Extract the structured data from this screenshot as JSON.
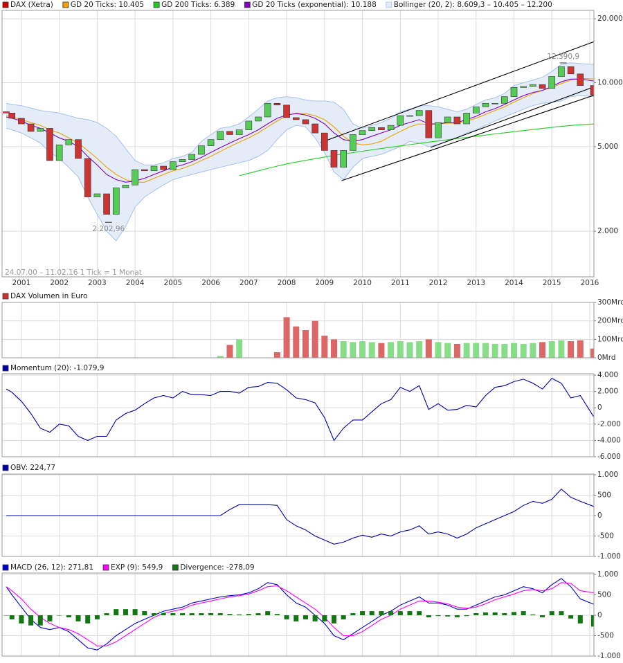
{
  "chart_data": [
    {
      "type": "candlestick",
      "name": "DAX (Xetra)",
      "legend_color": "#cc0000",
      "log": true,
      "footnote": "24.07.00 – 11.02.16   1 Tick = 1 Monat",
      "up_color": "#55cc55",
      "down_color": "#cc3333",
      "grid": true,
      "xlim": [
        2000.49,
        2016.11
      ],
      "xticks": [
        2001,
        2002,
        2003,
        2004,
        2005,
        2006,
        2007,
        2008,
        2009,
        2010,
        2011,
        2012,
        2013,
        2014,
        2015,
        2016
      ],
      "ylim": [
        1220,
        21900
      ],
      "yticks": [
        {
          "value": 20000,
          "label": "20.000"
        },
        {
          "value": 10000,
          "label": "10.000"
        },
        {
          "value": 5000,
          "label": "5.000"
        },
        {
          "value": 2000,
          "label": "2.000"
        }
      ],
      "x": [
        2000.6,
        2000.75,
        2001,
        2001.25,
        2001.5,
        2001.75,
        2002,
        2002.25,
        2002.5,
        2002.75,
        2003,
        2003.25,
        2003.5,
        2003.75,
        2004,
        2004.25,
        2004.5,
        2004.75,
        2005,
        2005.25,
        2005.5,
        2005.75,
        2006,
        2006.25,
        2006.5,
        2006.75,
        2007,
        2007.25,
        2007.5,
        2007.75,
        2008,
        2008.25,
        2008.5,
        2008.75,
        2009,
        2009.25,
        2009.5,
        2009.75,
        2010,
        2010.25,
        2010.5,
        2010.75,
        2011,
        2011.25,
        2011.5,
        2011.75,
        2012,
        2012.25,
        2012.5,
        2012.75,
        2013,
        2013.25,
        2013.5,
        2013.75,
        2014,
        2014.25,
        2014.5,
        2014.75,
        2015,
        2015.25,
        2015.5,
        2015.75,
        2016.1
      ],
      "open": [
        7300,
        7200,
        6800,
        6400,
        5900,
        6100,
        4300,
        5100,
        5400,
        4400,
        2900,
        3000,
        2400,
        3200,
        3300,
        3900,
        3850,
        4050,
        3900,
        4250,
        4350,
        4600,
        5050,
        5400,
        5900,
        5700,
        6000,
        6600,
        6900,
        8000,
        7850,
        6850,
        6700,
        6400,
        5800,
        4800,
        4000,
        4800,
        5700,
        5950,
        6150,
        6000,
        6300,
        7000,
        7000,
        7400,
        5500,
        6500,
        6900,
        6400,
        7200,
        7700,
        8000,
        8000,
        8600,
        9500,
        9600,
        9800,
        9400,
        10700,
        11900,
        11000,
        9700
      ],
      "close": [
        7200,
        6800,
        6400,
        5900,
        6100,
        4300,
        5100,
        5400,
        4400,
        2900,
        3000,
        2400,
        3200,
        3300,
        3900,
        3850,
        4050,
        3900,
        4250,
        4350,
        4600,
        5050,
        5400,
        5900,
        5700,
        6000,
        6600,
        6900,
        8000,
        7850,
        6850,
        6700,
        6400,
        5800,
        4800,
        4000,
        4800,
        5700,
        5950,
        6150,
        6000,
        6300,
        7000,
        7000,
        7400,
        5500,
        6500,
        6900,
        6400,
        7200,
        7700,
        8000,
        8000,
        8600,
        9500,
        9600,
        9800,
        9400,
        10700,
        11900,
        11000,
        9700,
        8750
      ],
      "series": [
        {
          "name": "GD 20 Ticks: 10.405",
          "color": "#f0a000",
          "values": [
            7000,
            6900,
            6700,
            6500,
            6300,
            6000,
            5800,
            5500,
            5200,
            4800,
            4400,
            4000,
            3700,
            3500,
            3400,
            3400,
            3550,
            3700,
            3850,
            3950,
            4100,
            4300,
            4500,
            4750,
            5000,
            5250,
            5500,
            5800,
            6200,
            6600,
            7000,
            7200,
            7150,
            7000,
            6700,
            6200,
            5600,
            5200,
            5100,
            5150,
            5300,
            5600,
            5900,
            6200,
            6400,
            6350,
            6400,
            6450,
            6450,
            6600,
            6800,
            7100,
            7400,
            7700,
            8100,
            8500,
            8900,
            9200,
            9500,
            9900,
            10300,
            10500,
            10405
          ]
        },
        {
          "name": "GD 200 Ticks: 6.389",
          "color": "#22cc22",
          "values": [
            null,
            null,
            null,
            null,
            null,
            null,
            null,
            null,
            null,
            null,
            null,
            null,
            null,
            null,
            null,
            null,
            null,
            null,
            null,
            null,
            null,
            null,
            null,
            null,
            null,
            3650,
            3750,
            3850,
            3950,
            4050,
            4150,
            4230,
            4310,
            4390,
            4470,
            4550,
            4620,
            4690,
            4760,
            4830,
            4900,
            4970,
            5040,
            5110,
            5180,
            5250,
            5320,
            5390,
            5460,
            5530,
            5600,
            5670,
            5740,
            5810,
            5880,
            5950,
            6020,
            6090,
            6160,
            6230,
            6290,
            6340,
            6389
          ]
        },
        {
          "name": "GD 20 Ticks (exponential): 10.188",
          "color": "#8000c0",
          "values": [
            6900,
            6800,
            6600,
            6300,
            6100,
            5800,
            5500,
            5300,
            5000,
            4500,
            4100,
            3700,
            3500,
            3400,
            3450,
            3550,
            3700,
            3850,
            4000,
            4100,
            4250,
            4450,
            4700,
            4950,
            5200,
            5450,
            5700,
            6000,
            6400,
            6800,
            7050,
            7150,
            7050,
            6800,
            6400,
            5800,
            5400,
            5300,
            5400,
            5600,
            5800,
            6000,
            6300,
            6500,
            6700,
            6400,
            6400,
            6500,
            6500,
            6700,
            6950,
            7300,
            7550,
            7900,
            8300,
            8700,
            9000,
            9200,
            9600,
            10100,
            10400,
            10400,
            10188
          ]
        }
      ],
      "bands": {
        "name": "Bollinger (20, 2): 8.609,3 – 10.405 – 12.200",
        "color": "#a8c0e8",
        "fill": "#e4ecf8",
        "upper": [
          8000,
          7900,
          7800,
          7600,
          7400,
          7300,
          7200,
          7000,
          6800,
          6700,
          6500,
          6100,
          5600,
          4900,
          4300,
          4100,
          4100,
          4200,
          4400,
          4500,
          4700,
          5300,
          5700,
          6100,
          6200,
          6400,
          6900,
          7500,
          8200,
          8500,
          8600,
          8500,
          8300,
          8200,
          8200,
          8100,
          7500,
          6400,
          6100,
          6300,
          6500,
          6800,
          7300,
          7500,
          7800,
          7800,
          7700,
          7500,
          7300,
          7500,
          7900,
          8300,
          8500,
          8900,
          9700,
          10000,
          10300,
          10600,
          11300,
          12200,
          12400,
          12300,
          12200
        ],
        "lower": [
          6100,
          6000,
          5800,
          5500,
          5200,
          4700,
          4400,
          4000,
          3600,
          2900,
          2400,
          2000,
          1800,
          2100,
          2600,
          2900,
          3100,
          3300,
          3500,
          3600,
          3700,
          3800,
          3900,
          4000,
          4100,
          4200,
          4300,
          4500,
          4800,
          5400,
          6000,
          6300,
          6200,
          5500,
          4700,
          3800,
          3500,
          4000,
          4400,
          4500,
          4600,
          4800,
          5000,
          5300,
          5200,
          5000,
          5100,
          5300,
          5500,
          5800,
          6000,
          6300,
          6600,
          6900,
          7200,
          7500,
          7800,
          8000,
          8100,
          8200,
          8600,
          8700,
          8609
        ]
      },
      "trendlines": [
        {
          "x": [
            2008.9,
            2016.11
          ],
          "y": [
            5230,
            15600
          ]
        },
        {
          "x": [
            2009.45,
            2016.11
          ],
          "y": [
            3460,
            8730
          ]
        },
        {
          "x": [
            2011.8,
            2016.11
          ],
          "y": [
            4960,
            9560
          ]
        }
      ],
      "annotations": [
        {
          "label": "12.390,9",
          "x": 2015.3,
          "value": 12390.9,
          "anchor": "above"
        },
        {
          "label": "2.202,96",
          "x": 2003.3,
          "value": 2202.96,
          "anchor": "below"
        }
      ]
    },
    {
      "type": "bar",
      "name": "DAX Volumen in Euro",
      "legend_color": "#cc3333",
      "up_color": "#88dd88",
      "down_color": "#dd6666",
      "grid": true,
      "ylim": [
        0,
        300
      ],
      "yticks": [
        {
          "value": 300,
          "label": "300Mrd"
        },
        {
          "value": 200,
          "label": "200Mrd"
        },
        {
          "value": 100,
          "label": "100Mrd"
        },
        {
          "value": 0,
          "label": "0Mrd"
        }
      ],
      "values": [
        null,
        null,
        null,
        null,
        null,
        null,
        null,
        null,
        null,
        null,
        null,
        null,
        null,
        null,
        null,
        null,
        null,
        null,
        null,
        null,
        null,
        null,
        null,
        10,
        70,
        100,
        null,
        null,
        null,
        30,
        220,
        170,
        150,
        200,
        120,
        100,
        90,
        85,
        90,
        85,
        80,
        85,
        90,
        85,
        90,
        100,
        85,
        80,
        75,
        80,
        80,
        80,
        75,
        75,
        80,
        75,
        80,
        85,
        90,
        95,
        90,
        95,
        50
      ]
    },
    {
      "type": "line",
      "grid": true,
      "ylim": [
        -6000,
        4170
      ],
      "yticks": [
        {
          "value": 4000,
          "label": "4.000"
        },
        {
          "value": 2000,
          "label": "2.000"
        },
        0,
        {
          "value": -2000,
          "label": "-2.000"
        },
        {
          "value": -4000,
          "label": "-4.000"
        },
        {
          "value": -6000,
          "label": "-6.000"
        }
      ],
      "series": [
        {
          "name": "Momentum (20): -1.079,9",
          "color": "#0000aa",
          "values": [
            2300,
            1900,
            800,
            -700,
            -2500,
            -3000,
            -2000,
            -2200,
            -3500,
            -4000,
            -3500,
            -3500,
            -1500,
            -700,
            -300,
            500,
            1200,
            1500,
            1200,
            2000,
            1600,
            1600,
            1500,
            2000,
            2000,
            1800,
            2500,
            2600,
            3100,
            3000,
            2200,
            1200,
            1000,
            600,
            -1200,
            -4000,
            -2500,
            -1500,
            -1500,
            -500,
            500,
            1000,
            2500,
            2000,
            2700,
            -200,
            500,
            -300,
            -200,
            300,
            100,
            1500,
            2500,
            2700,
            3200,
            3500,
            3000,
            2300,
            3600,
            3000,
            1200,
            1500,
            -1079.9
          ]
        }
      ]
    },
    {
      "type": "line",
      "grid": true,
      "ylim": [
        -1000,
        1017
      ],
      "yticks": [
        {
          "value": 1000,
          "label": "1.000"
        },
        500,
        0,
        -500,
        {
          "value": -1000,
          "label": "-1.000"
        }
      ],
      "series": [
        {
          "name": "OBV: 224,77",
          "color": "#0000aa",
          "values": [
            0,
            0,
            0,
            0,
            0,
            0,
            0,
            0,
            0,
            0,
            0,
            0,
            0,
            0,
            0,
            0,
            0,
            0,
            0,
            0,
            0,
            0,
            0,
            0,
            150,
            270,
            270,
            270,
            270,
            250,
            -100,
            -250,
            -350,
            -500,
            -600,
            -700,
            -650,
            -550,
            -480,
            -530,
            -450,
            -500,
            -400,
            -350,
            -250,
            -450,
            -400,
            -450,
            -550,
            -450,
            -300,
            -200,
            -100,
            0,
            100,
            250,
            350,
            300,
            400,
            650,
            450,
            350,
            224.77
          ]
        }
      ]
    },
    {
      "type": "line",
      "grid": true,
      "ylim": [
        -1000,
        1034
      ],
      "yticks": [
        {
          "value": 1000,
          "label": "1.000"
        },
        500,
        0,
        -500,
        {
          "value": -1000,
          "label": "-1.000"
        }
      ],
      "series": [
        {
          "name": "MACD (26, 12): 271,81",
          "color": "#0000cc",
          "values": [
            700,
            500,
            200,
            -100,
            -300,
            -350,
            -300,
            -400,
            -600,
            -800,
            -850,
            -700,
            -500,
            -350,
            -200,
            -100,
            0,
            100,
            150,
            200,
            300,
            350,
            400,
            450,
            480,
            500,
            550,
            650,
            800,
            750,
            500,
            300,
            200,
            0,
            -200,
            -500,
            -600,
            -450,
            -300,
            -150,
            0,
            100,
            250,
            350,
            450,
            300,
            300,
            250,
            150,
            150,
            250,
            350,
            450,
            500,
            600,
            700,
            650,
            550,
            750,
            900,
            700,
            400,
            271.81
          ]
        },
        {
          "name": "EXP (9): 549,9",
          "color": "#ff00ff",
          "values": [
            700,
            600,
            400,
            150,
            -50,
            -200,
            -300,
            -350,
            -450,
            -600,
            -750,
            -750,
            -650,
            -500,
            -350,
            -200,
            -50,
            50,
            100,
            150,
            250,
            300,
            350,
            400,
            450,
            480,
            520,
            600,
            700,
            720,
            600,
            450,
            300,
            150,
            -50,
            -300,
            -500,
            -500,
            -400,
            -250,
            -100,
            0,
            150,
            250,
            350,
            350,
            320,
            280,
            200,
            170,
            200,
            280,
            380,
            450,
            520,
            600,
            630,
            600,
            650,
            800,
            780,
            600,
            549.9
          ]
        },
        {
          "name": "Divergence: -278,09",
          "color": "#117711",
          "type": "bar",
          "values": [
            0,
            -100,
            -200,
            -250,
            -250,
            -150,
            0,
            -50,
            -150,
            -200,
            -100,
            50,
            150,
            150,
            150,
            100,
            50,
            50,
            50,
            50,
            50,
            50,
            50,
            50,
            30,
            20,
            30,
            50,
            100,
            30,
            -100,
            -150,
            -100,
            -150,
            -150,
            -200,
            -100,
            50,
            100,
            100,
            100,
            100,
            100,
            100,
            100,
            -50,
            -20,
            -30,
            -50,
            -20,
            50,
            70,
            70,
            50,
            80,
            100,
            20,
            -50,
            100,
            100,
            -80,
            -200,
            -278.09
          ]
        }
      ]
    }
  ]
}
